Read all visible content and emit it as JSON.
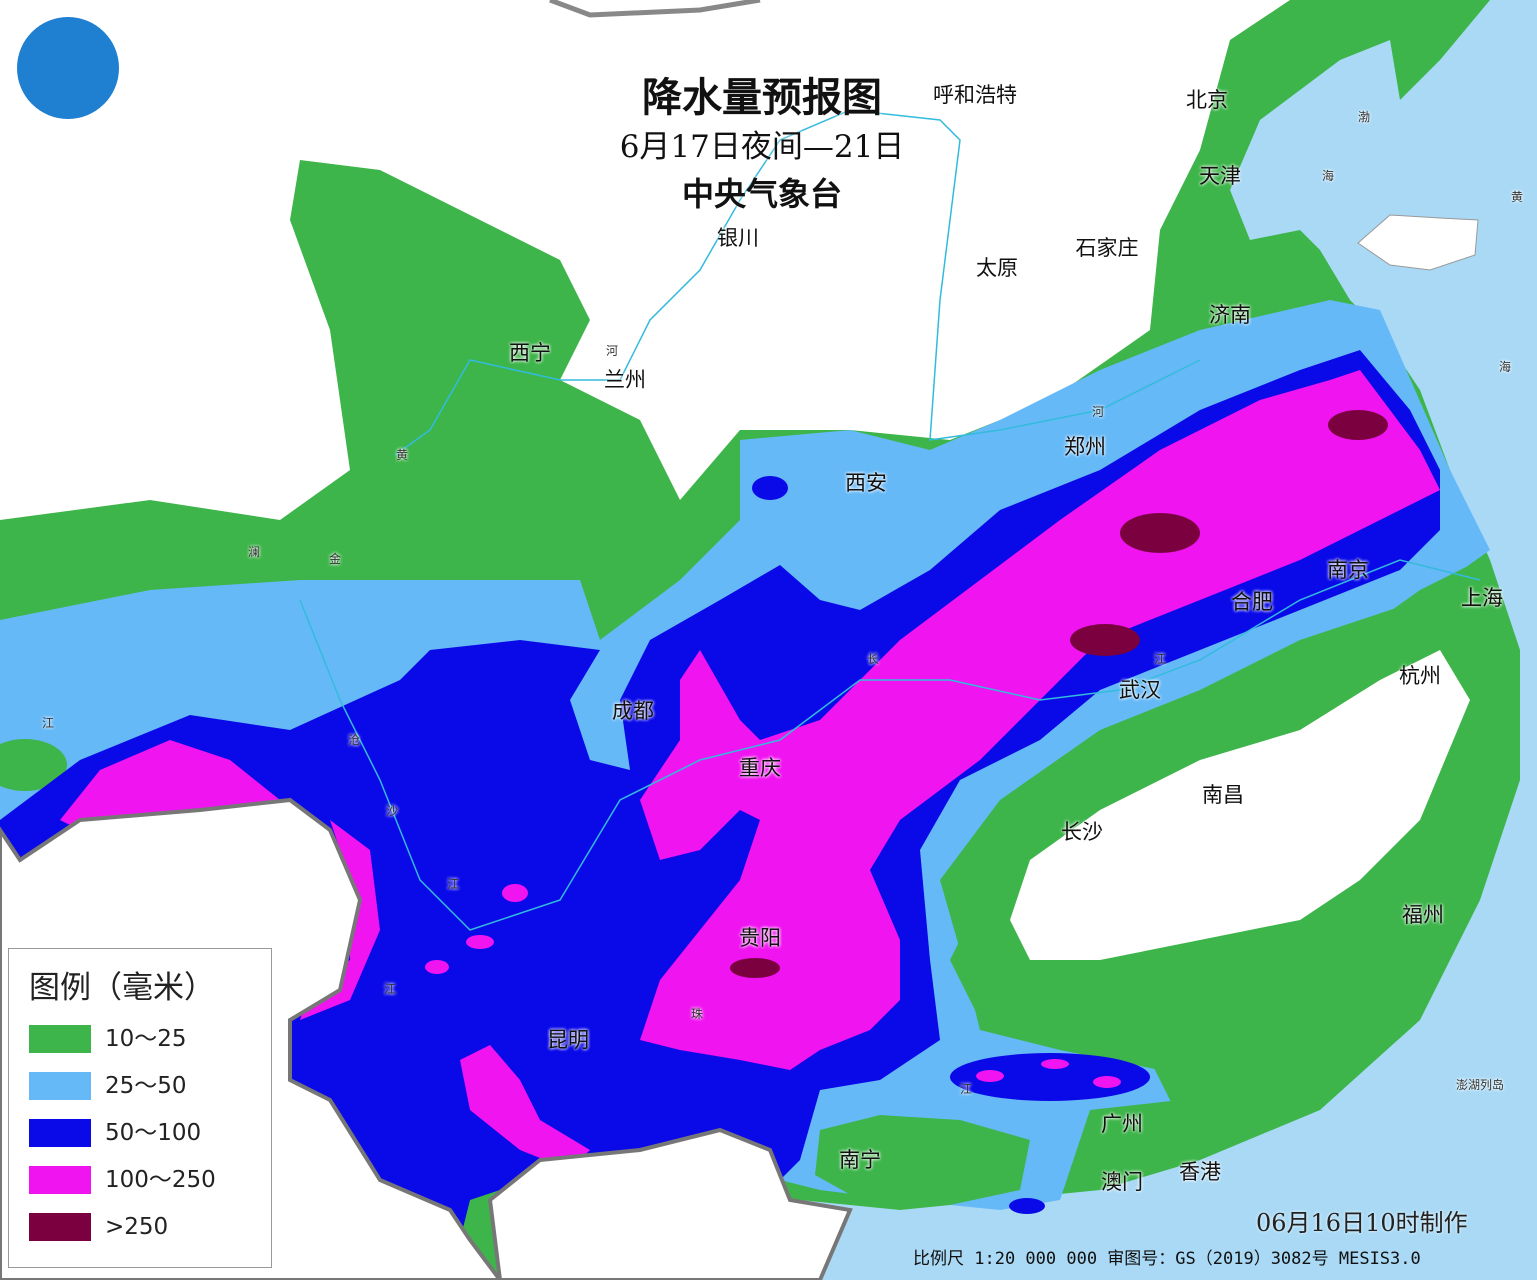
{
  "title": "降水量预报图",
  "subtitle": "6月17日夜间—21日",
  "agency": "中央气象台",
  "colors": {
    "sea": "#a9d9f5",
    "10-25": "#3db54a",
    "25-50": "#66b9f7",
    "50-100": "#0a0ae8",
    "100-250": "#f014f0",
    ">250": "#7a0040"
  },
  "legend": {
    "title": "图例（毫米）",
    "items": [
      {
        "label": "10～25",
        "color": "#3db54a"
      },
      {
        "label": "25～50",
        "color": "#66b9f7"
      },
      {
        "label": "50～100",
        "color": "#0a0ae8"
      },
      {
        "label": "100～250",
        "color": "#f014f0"
      },
      {
        "label": ">250",
        "color": "#7a0040"
      }
    ]
  },
  "cities": [
    "西宁",
    "兰州",
    "银川",
    "呼和浩特",
    "北京",
    "天津",
    "石家庄",
    "太原",
    "济南",
    "郑州",
    "西安",
    "南京",
    "合肥",
    "上海",
    "杭州",
    "武汉",
    "成都",
    "重庆",
    "南昌",
    "长沙",
    "福州",
    "贵阳",
    "昆明",
    "广州",
    "南宁",
    "澳门",
    "香港"
  ],
  "places_small": [
    "澎湖列岛",
    "渤",
    "海",
    "黄",
    "海",
    "河",
    "黄",
    "河",
    "长",
    "江",
    "江",
    "珠",
    "澜",
    "金",
    "沧",
    "沙",
    "江",
    "江",
    "江"
  ],
  "made_time": "06月16日10时制作",
  "footer": "比例尺 1:20 000 000  审图号：GS（2019）3082号 MESIS3.0",
  "logo_icon": "cma-logo"
}
